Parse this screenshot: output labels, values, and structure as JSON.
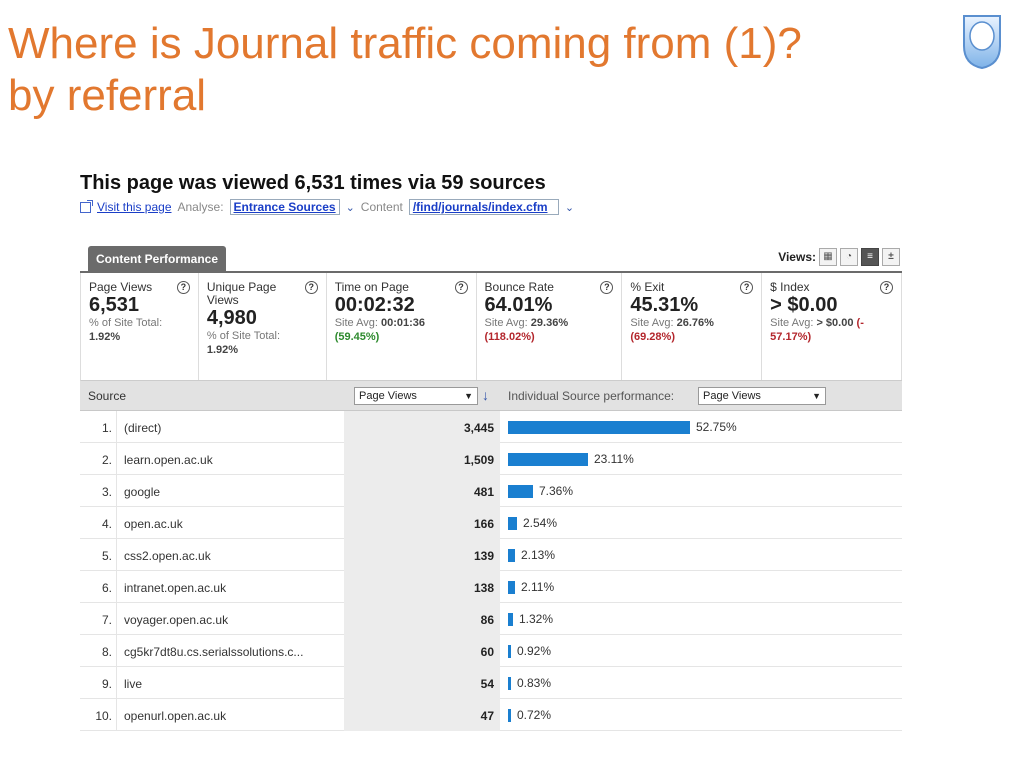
{
  "slide": {
    "title_line1": "Where is Journal traffic coming from (1)?",
    "title_line2": "by referral"
  },
  "report": {
    "headline": "This page was viewed 6,531 times via 59 sources",
    "visit_link": "Visit this page",
    "analyse_label": "Analyse:",
    "analyse_value": "Entrance Sources",
    "content_label": "Content",
    "content_value": "/find/journals/index.cfm",
    "tab_label": "Content Performance",
    "views_label": "Views:"
  },
  "metrics": [
    {
      "label": "Page Views",
      "value": "6,531",
      "sub1": "% of Site Total:",
      "sub2": "1.92%",
      "help": "?"
    },
    {
      "label": "Unique Page Views",
      "value": "4,980",
      "sub1": "% of Site Total:",
      "sub2": "1.92%",
      "help": "?"
    },
    {
      "label": "Time on Page",
      "value": "00:02:32",
      "sub1": "Site Avg:",
      "sub1b": "00:01:36",
      "sub2": "(59.45%)",
      "help": "?"
    },
    {
      "label": "Bounce Rate",
      "value": "64.01%",
      "sub1": "Site Avg:",
      "sub1b": "29.36%",
      "sub2": "(118.02%)",
      "help": "?"
    },
    {
      "label": "% Exit",
      "value": "45.31%",
      "sub1": "Site Avg:",
      "sub1b": "26.76%",
      "sub2": "(69.28%)",
      "help": "?"
    },
    {
      "label": "$ Index",
      "value": "> $0.00",
      "sub1": "Site Avg:",
      "sub1b": "> $0.00",
      "sub2a": "(-",
      "sub2": "57.17%)",
      "help": "?"
    }
  ],
  "table": {
    "col_source": "Source",
    "metric_select": "Page Views",
    "perf_label": "Individual Source performance:",
    "perf_select": "Page Views",
    "rows": [
      {
        "num": "1.",
        "source": "(direct)",
        "value": "3,445",
        "pct": "52.75%",
        "fraction": 0.5275
      },
      {
        "num": "2.",
        "source": "learn.open.ac.uk",
        "value": "1,509",
        "pct": "23.11%",
        "fraction": 0.2311
      },
      {
        "num": "3.",
        "source": "google",
        "value": "481",
        "pct": "7.36%",
        "fraction": 0.0736
      },
      {
        "num": "4.",
        "source": "open.ac.uk",
        "value": "166",
        "pct": "2.54%",
        "fraction": 0.0254
      },
      {
        "num": "5.",
        "source": "css2.open.ac.uk",
        "value": "139",
        "pct": "2.13%",
        "fraction": 0.0213
      },
      {
        "num": "6.",
        "source": "intranet.open.ac.uk",
        "value": "138",
        "pct": "2.11%",
        "fraction": 0.0211
      },
      {
        "num": "7.",
        "source": "voyager.open.ac.uk",
        "value": "86",
        "pct": "1.32%",
        "fraction": 0.0132
      },
      {
        "num": "8.",
        "source": "cg5kr7dt8u.cs.serialssolutions.c...",
        "value": "60",
        "pct": "0.92%",
        "fraction": 0.0092
      },
      {
        "num": "9.",
        "source": "live",
        "value": "54",
        "pct": "0.83%",
        "fraction": 0.0083
      },
      {
        "num": "10.",
        "source": "openurl.open.ac.uk",
        "value": "47",
        "pct": "0.72%",
        "fraction": 0.0072
      }
    ]
  },
  "colors": {
    "title": "#e2782f",
    "bar": "#1a7fd0",
    "link": "#1a3ec7"
  }
}
